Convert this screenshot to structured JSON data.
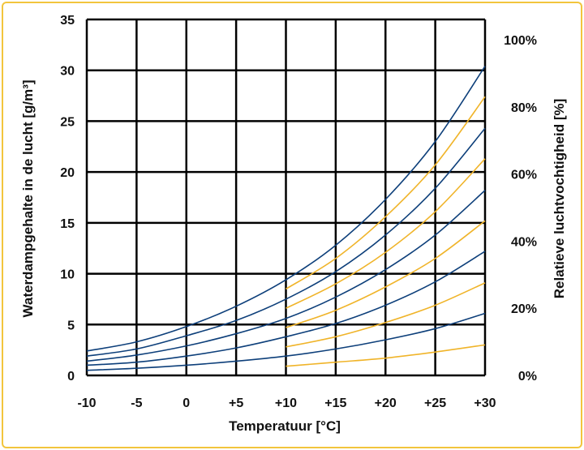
{
  "chart_data": {
    "type": "line",
    "title": "",
    "xlabel": "Temperatuur [°C]",
    "ylabel": "Waterdampgehalte in de lucht [g/m³]",
    "y2label": "Relatieve luchtvochtigheid [%]",
    "xlim": [
      -10,
      30
    ],
    "ylim": [
      0,
      35
    ],
    "x_tick_labels": [
      "-10",
      "-5",
      "0",
      "+5",
      "+10",
      "+15",
      "+20",
      "+25",
      "+30"
    ],
    "y_tick_labels": [
      "0",
      "5",
      "10",
      "15",
      "20",
      "25",
      "30",
      "35"
    ],
    "y2_tick_labels": [
      "0%",
      "20%",
      "40%",
      "60%",
      "80%",
      "100%"
    ],
    "y2_tick_values": [
      0,
      6.6,
      13.2,
      19.8,
      26.4,
      33.0
    ],
    "grid": true,
    "series": [
      {
        "rh": 100,
        "color": "#0d3f7a",
        "x": [
          -10,
          -5,
          0,
          5,
          10,
          15,
          20,
          25,
          30
        ],
        "values": [
          2.4,
          3.3,
          4.8,
          6.8,
          9.4,
          12.8,
          17.3,
          23.0,
          30.4
        ]
      },
      {
        "rh": 90,
        "color": "#f0b429",
        "x": [
          10,
          15,
          20,
          25,
          30
        ],
        "values": [
          8.5,
          11.5,
          15.6,
          20.7,
          27.4
        ]
      },
      {
        "rh": 80,
        "color": "#0d3f7a",
        "x": [
          -10,
          -5,
          0,
          5,
          10,
          15,
          20,
          25,
          30
        ],
        "values": [
          1.9,
          2.6,
          3.9,
          5.4,
          7.5,
          10.2,
          13.8,
          18.4,
          24.3
        ]
      },
      {
        "rh": 70,
        "color": "#f0b429",
        "x": [
          10,
          15,
          20,
          25,
          30
        ],
        "values": [
          6.6,
          9.0,
          12.1,
          16.1,
          21.3
        ]
      },
      {
        "rh": 60,
        "color": "#0d3f7a",
        "x": [
          -10,
          -5,
          0,
          5,
          10,
          15,
          20,
          25,
          30
        ],
        "values": [
          1.4,
          2.0,
          2.9,
          4.1,
          5.6,
          7.7,
          10.4,
          13.8,
          18.2
        ]
      },
      {
        "rh": 50,
        "color": "#f0b429",
        "x": [
          10,
          15,
          20,
          25,
          30
        ],
        "values": [
          4.7,
          6.4,
          8.7,
          11.5,
          15.2
        ]
      },
      {
        "rh": 40,
        "color": "#0d3f7a",
        "x": [
          -10,
          -5,
          0,
          5,
          10,
          15,
          20,
          25,
          30
        ],
        "values": [
          1.0,
          1.3,
          1.9,
          2.7,
          3.8,
          5.1,
          6.9,
          9.2,
          12.2
        ]
      },
      {
        "rh": 30,
        "color": "#f0b429",
        "x": [
          10,
          15,
          20,
          25,
          30
        ],
        "values": [
          2.8,
          3.8,
          5.2,
          6.9,
          9.1
        ]
      },
      {
        "rh": 20,
        "color": "#0d3f7a",
        "x": [
          -10,
          -5,
          0,
          5,
          10,
          15,
          20,
          25,
          30
        ],
        "values": [
          0.5,
          0.7,
          1.0,
          1.4,
          1.9,
          2.6,
          3.5,
          4.6,
          6.1
        ]
      },
      {
        "rh": 10,
        "color": "#f0b429",
        "x": [
          10,
          15,
          20,
          25,
          30
        ],
        "values": [
          0.9,
          1.3,
          1.7,
          2.3,
          3.0
        ]
      }
    ]
  }
}
